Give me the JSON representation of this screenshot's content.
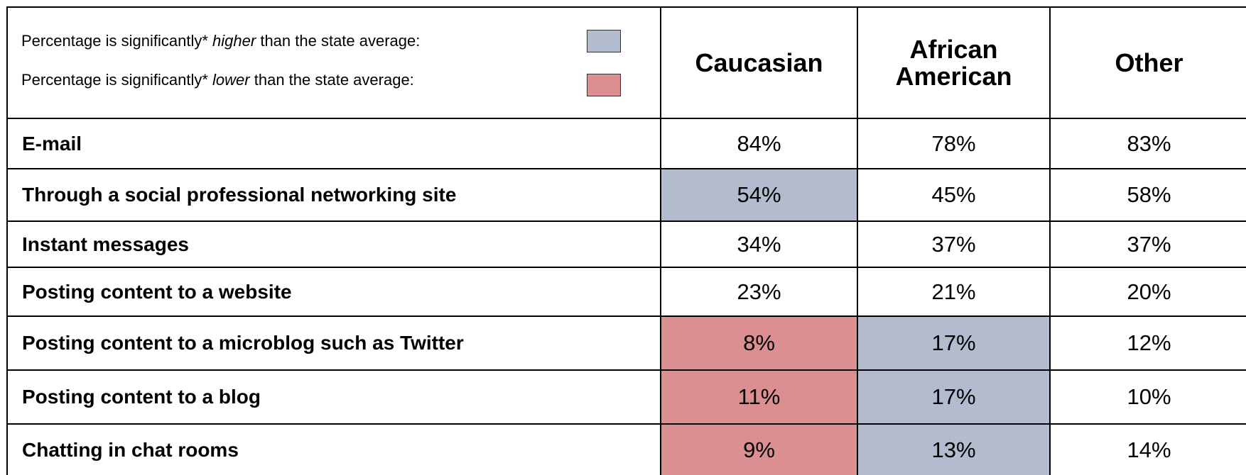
{
  "legend": [
    {
      "before": "Percentage is significantly*",
      "emphasis": "higher",
      "after": "than the state average:",
      "status": "higher",
      "color": "#b3bccf"
    },
    {
      "before": "Percentage is significantly*",
      "emphasis": "lower",
      "after": "than the state average:",
      "status": "lower",
      "color": "#db8f90"
    }
  ],
  "table": {
    "columns": [
      "Caucasian",
      "African American",
      "Other"
    ],
    "rows": [
      {
        "label": "E-mail",
        "values": [
          "84%",
          "78%",
          "83%"
        ],
        "status": [
          null,
          null,
          null
        ]
      },
      {
        "label": "Through a social professional networking site",
        "values": [
          "54%",
          "45%",
          "58%"
        ],
        "status": [
          "higher",
          null,
          null
        ]
      },
      {
        "label": "Instant messages",
        "values": [
          "34%",
          "37%",
          "37%"
        ],
        "status": [
          null,
          null,
          null
        ]
      },
      {
        "label": "Posting content to a website",
        "values": [
          "23%",
          "21%",
          "20%"
        ],
        "status": [
          null,
          null,
          null
        ]
      },
      {
        "label": "Posting content to a microblog such as Twitter",
        "values": [
          "8%",
          "17%",
          "12%"
        ],
        "status": [
          "lower",
          "higher",
          null
        ]
      },
      {
        "label": "Posting content to a blog",
        "values": [
          "11%",
          "17%",
          "10%"
        ],
        "status": [
          "lower",
          "higher",
          null
        ]
      },
      {
        "label": "Chatting in chat rooms",
        "values": [
          "9%",
          "13%",
          "14%"
        ],
        "status": [
          "lower",
          "higher",
          null
        ]
      }
    ]
  }
}
